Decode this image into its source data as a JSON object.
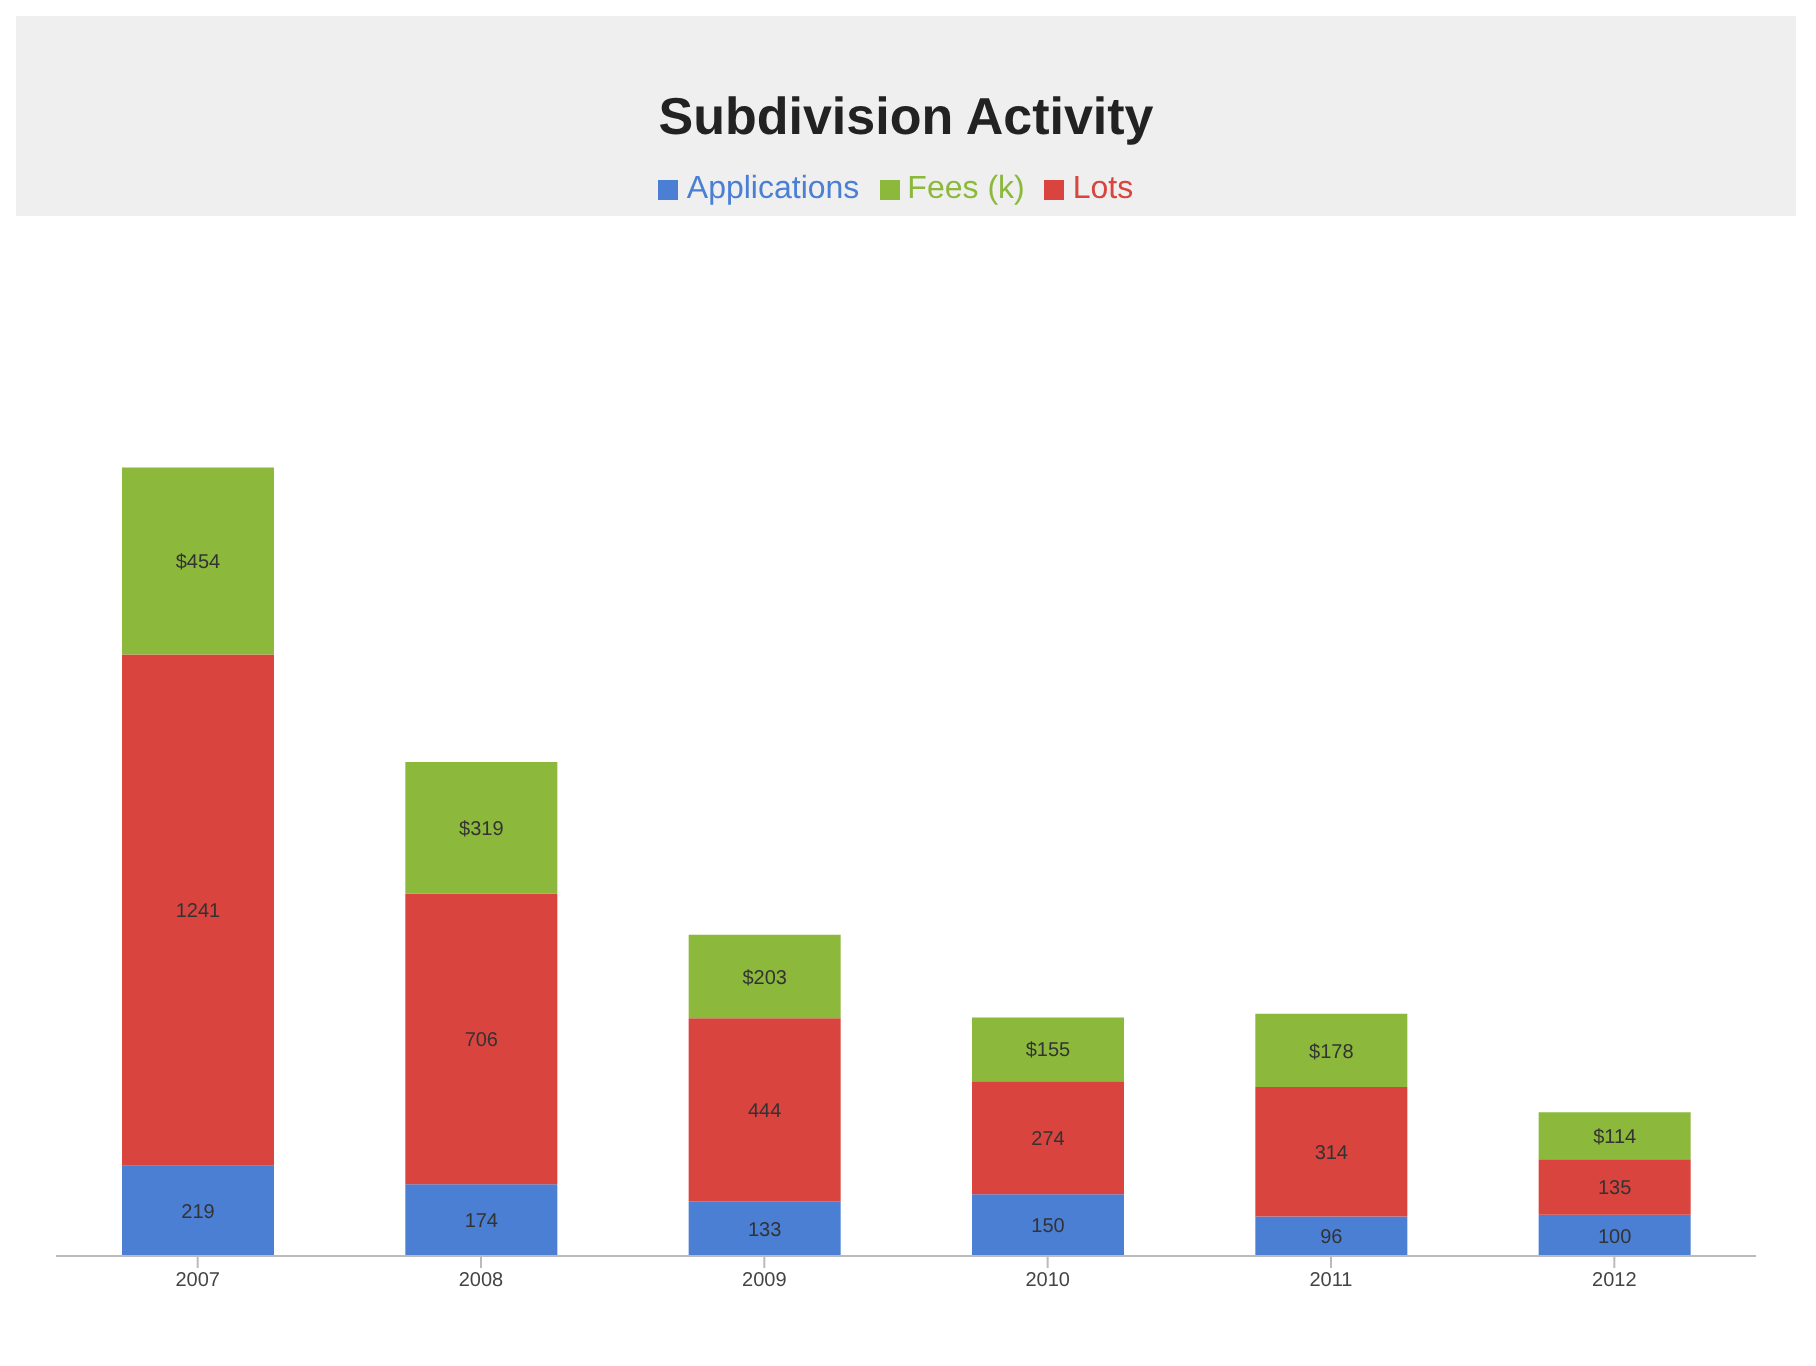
{
  "chart_data": {
    "type": "bar",
    "title": "Subdivision Activity",
    "categories": [
      "2007",
      "2008",
      "2009",
      "2010",
      "2011",
      "2012"
    ],
    "stacked": true,
    "legend": "top",
    "grid": false,
    "series": [
      {
        "name": "Applications",
        "color": "#4a7fd4",
        "values": [
          219,
          174,
          133,
          150,
          96,
          100
        ],
        "value_labels": [
          "219",
          "174",
          "133",
          "150",
          "96",
          "100"
        ]
      },
      {
        "name": "Lots",
        "color": "#d9443f",
        "values": [
          1241,
          706,
          444,
          274,
          314,
          135
        ],
        "value_labels": [
          "1241",
          "706",
          "444",
          "274",
          "314",
          "135"
        ]
      },
      {
        "name": "Fees (k)",
        "color": "#8cb83c",
        "values": [
          454,
          319,
          203,
          155,
          178,
          114
        ],
        "value_labels": [
          "$454",
          "$319",
          "$203",
          "$155",
          "$178",
          "$114"
        ]
      }
    ]
  }
}
